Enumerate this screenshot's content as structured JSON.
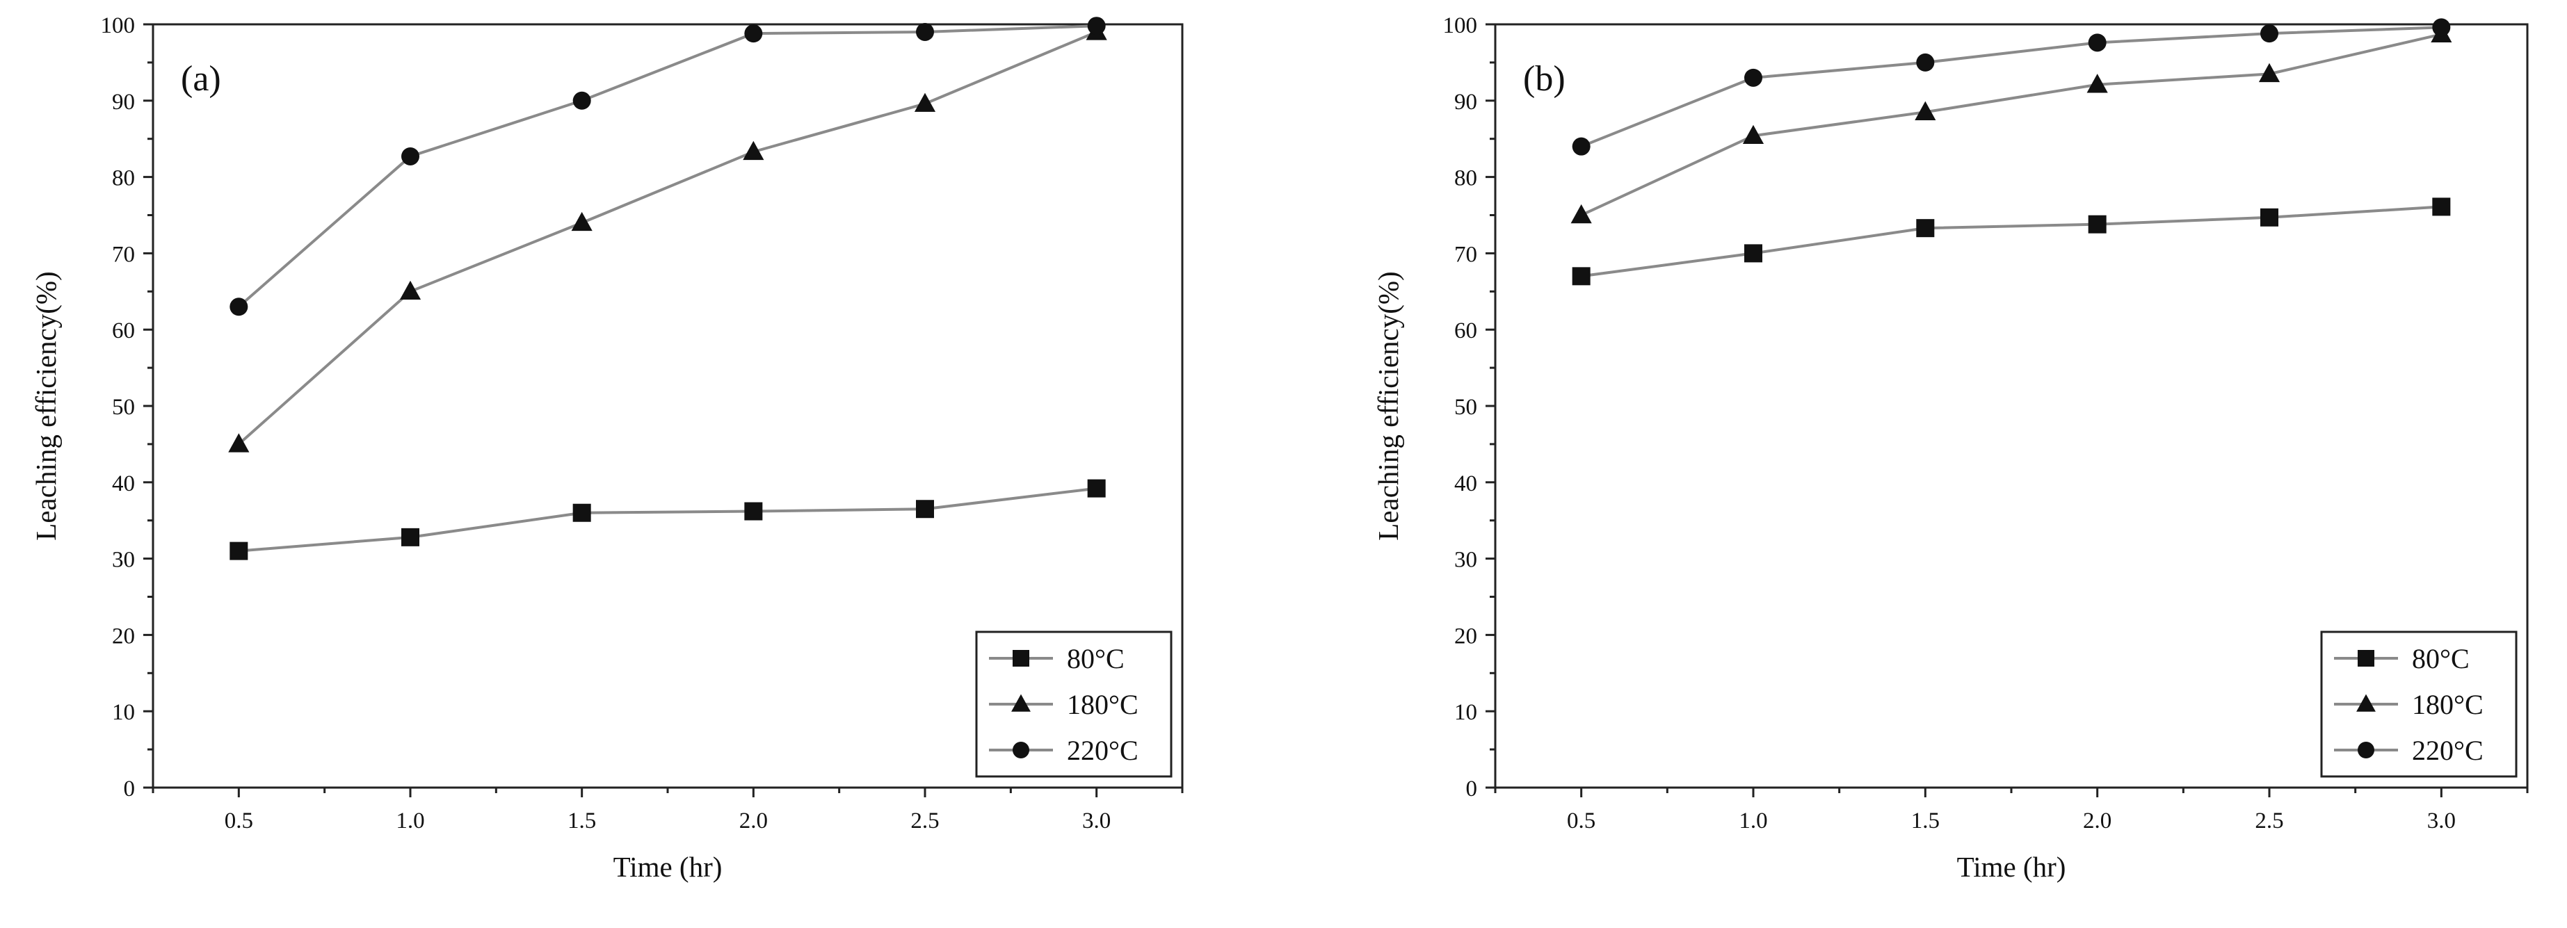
{
  "chart_data": [
    {
      "type": "line",
      "panel_label": "(a)",
      "xlabel": "Time (hr)",
      "ylabel": "Leaching efficiency(%)",
      "x": [
        0.5,
        1.0,
        1.5,
        2.0,
        2.5,
        3.0
      ],
      "x_tick_labels": [
        "0.5",
        "1.0",
        "1.5",
        "2.0",
        "2.5",
        "3.0"
      ],
      "xlim": [
        0.25,
        3.25
      ],
      "ylim": [
        0,
        100
      ],
      "y_ticks": [
        0,
        10,
        20,
        30,
        40,
        50,
        60,
        70,
        80,
        90,
        100
      ],
      "y_tick_labels": [
        "0",
        "10",
        "20",
        "30",
        "40",
        "50",
        "60",
        "70",
        "80",
        "90",
        "100"
      ],
      "grid": false,
      "legend_position": "bottom-right",
      "series": [
        {
          "name": "80°C",
          "marker": "square",
          "values": [
            31,
            32.8,
            36,
            36.2,
            36.5,
            39.2
          ]
        },
        {
          "name": "180°C",
          "marker": "triangle",
          "values": [
            45,
            65,
            74,
            83.3,
            89.6,
            99
          ]
        },
        {
          "name": "220°C",
          "marker": "circle",
          "values": [
            63,
            82.7,
            90,
            98.8,
            99,
            99.8
          ]
        }
      ]
    },
    {
      "type": "line",
      "panel_label": "(b)",
      "xlabel": "Time (hr)",
      "ylabel": "Leaching efficiency(%)",
      "x": [
        0.5,
        1.0,
        1.5,
        2.0,
        2.5,
        3.0
      ],
      "x_tick_labels": [
        "0.5",
        "1.0",
        "1.5",
        "2.0",
        "2.5",
        "3.0"
      ],
      "xlim": [
        0.25,
        3.25
      ],
      "ylim": [
        0,
        100
      ],
      "y_ticks": [
        0,
        10,
        20,
        30,
        40,
        50,
        60,
        70,
        80,
        90,
        100
      ],
      "y_tick_labels": [
        "0",
        "10",
        "20",
        "30",
        "40",
        "50",
        "60",
        "70",
        "80",
        "90",
        "100"
      ],
      "grid": false,
      "legend_position": "bottom-right",
      "series": [
        {
          "name": "80°C",
          "marker": "square",
          "values": [
            67,
            70,
            73.3,
            73.8,
            74.7,
            76.1
          ]
        },
        {
          "name": "180°C",
          "marker": "triangle",
          "values": [
            75,
            85.4,
            88.5,
            92.1,
            93.5,
            98.7
          ]
        },
        {
          "name": "220°C",
          "marker": "circle",
          "values": [
            84,
            93,
            95,
            97.6,
            98.8,
            99.6
          ]
        }
      ]
    }
  ]
}
